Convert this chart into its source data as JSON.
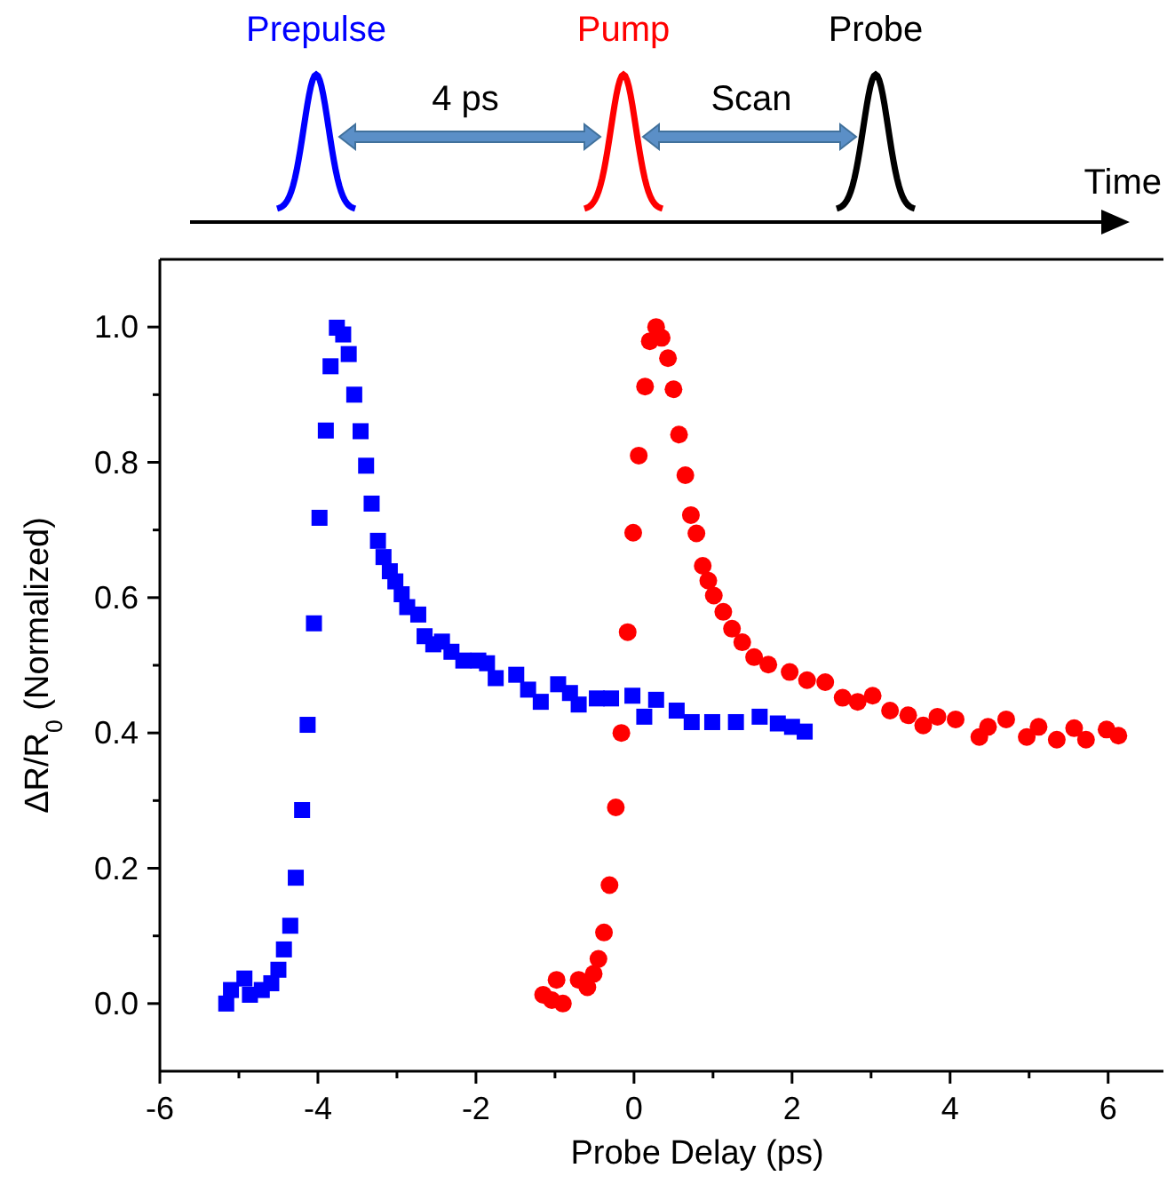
{
  "chart_data": {
    "type": "scatter",
    "xlabel": "Probe Delay (ps)",
    "ylabel": "ΔR/R$_{0}$ (Normalized)",
    "annotations": [
      "Prepulse",
      "Pump",
      "Probe",
      "4 ps",
      "Scan",
      "Time"
    ],
    "xlim": [
      -6,
      6.7
    ],
    "ylim": [
      -0.1,
      1.1
    ],
    "xticks": [
      -6,
      {
        "value": -5,
        "label": null
      },
      -4,
      {
        "value": -3,
        "label": null
      },
      -2,
      {
        "value": -1,
        "label": null
      },
      0,
      {
        "value": 1,
        "label": null
      },
      2,
      {
        "value": 3,
        "label": null
      },
      4,
      {
        "value": 5,
        "label": null
      },
      6
    ],
    "yticks": [
      {
        "value": 0,
        "label": "0.0"
      },
      {
        "value": 0.1,
        "label": null
      },
      {
        "value": 0.2,
        "label": "0.2"
      },
      {
        "value": 0.3,
        "label": null
      },
      {
        "value": 0.4,
        "label": "0.4"
      },
      {
        "value": 0.5,
        "label": null
      },
      {
        "value": 0.6,
        "label": "0.6"
      },
      {
        "value": 0.7,
        "label": null
      },
      {
        "value": 0.8,
        "label": "0.8"
      },
      {
        "value": 0.9,
        "label": null
      },
      {
        "value": 1,
        "label": "1.0"
      }
    ],
    "grid": false,
    "series": [
      {
        "color": "#0000ff",
        "marker": "square",
        "x": [
          -5.16,
          -5.1,
          -4.93,
          -4.86,
          -4.71,
          -4.59,
          -4.5,
          -4.43,
          -4.35,
          -4.28,
          -4.2,
          -4.13,
          -4.05,
          -3.98,
          -3.9,
          -3.84,
          -3.76,
          -3.68,
          -3.61,
          -3.54,
          -3.46,
          -3.39,
          -3.32,
          -3.24,
          -3.17,
          -3.09,
          -3.02,
          -2.94,
          -2.87,
          -2.73,
          -2.65,
          -2.54,
          -2.43,
          -2.31,
          -2.16,
          -1.97,
          -1.86,
          -1.75,
          -1.49,
          -1.34,
          -1.18,
          -0.96,
          -0.81,
          -0.7,
          -0.47,
          -0.29,
          -0.02,
          0.13,
          0.28,
          0.54,
          0.73,
          0.99,
          1.29,
          1.59,
          1.82,
          2.0,
          2.16
        ],
        "values": [
          0.0,
          0.02,
          0.037,
          0.013,
          0.02,
          0.03,
          0.05,
          0.08,
          0.115,
          0.186,
          0.286,
          0.412,
          0.562,
          0.718,
          0.847,
          0.942,
          0.999,
          0.989,
          0.96,
          0.9,
          0.846,
          0.795,
          0.739,
          0.684,
          0.66,
          0.639,
          0.624,
          0.605,
          0.586,
          0.575,
          0.543,
          0.531,
          0.535,
          0.52,
          0.507,
          0.507,
          0.503,
          0.481,
          0.486,
          0.464,
          0.446,
          0.472,
          0.459,
          0.442,
          0.451,
          0.451,
          0.455,
          0.424,
          0.449,
          0.433,
          0.416,
          0.416,
          0.416,
          0.424,
          0.414,
          0.409,
          0.402
        ]
      },
      {
        "color": "#ff0000",
        "marker": "circle",
        "x": [
          -1.15,
          -1.04,
          -0.98,
          -0.9,
          -0.7,
          -0.59,
          -0.51,
          -0.45,
          -0.38,
          -0.31,
          -0.23,
          -0.16,
          -0.08,
          -0.01,
          0.06,
          0.14,
          0.2,
          0.28,
          0.35,
          0.43,
          0.5,
          0.57,
          0.65,
          0.72,
          0.79,
          0.87,
          0.94,
          1.01,
          1.13,
          1.24,
          1.37,
          1.52,
          1.7,
          1.97,
          2.19,
          2.42,
          2.64,
          2.83,
          3.02,
          3.24,
          3.47,
          3.66,
          3.84,
          4.07,
          4.37,
          4.48,
          4.71,
          4.97,
          5.12,
          5.35,
          5.57,
          5.72,
          5.98,
          6.13
        ],
        "values": [
          0.013,
          0.005,
          0.035,
          0.0,
          0.035,
          0.024,
          0.044,
          0.066,
          0.105,
          0.175,
          0.29,
          0.4,
          0.549,
          0.696,
          0.81,
          0.912,
          0.979,
          1.0,
          0.984,
          0.954,
          0.908,
          0.841,
          0.781,
          0.722,
          0.695,
          0.647,
          0.625,
          0.603,
          0.579,
          0.554,
          0.534,
          0.512,
          0.501,
          0.49,
          0.478,
          0.475,
          0.452,
          0.446,
          0.455,
          0.433,
          0.426,
          0.411,
          0.424,
          0.42,
          0.394,
          0.409,
          0.42,
          0.394,
          0.409,
          0.39,
          0.407,
          0.39,
          0.405,
          0.396
        ]
      }
    ]
  }
}
